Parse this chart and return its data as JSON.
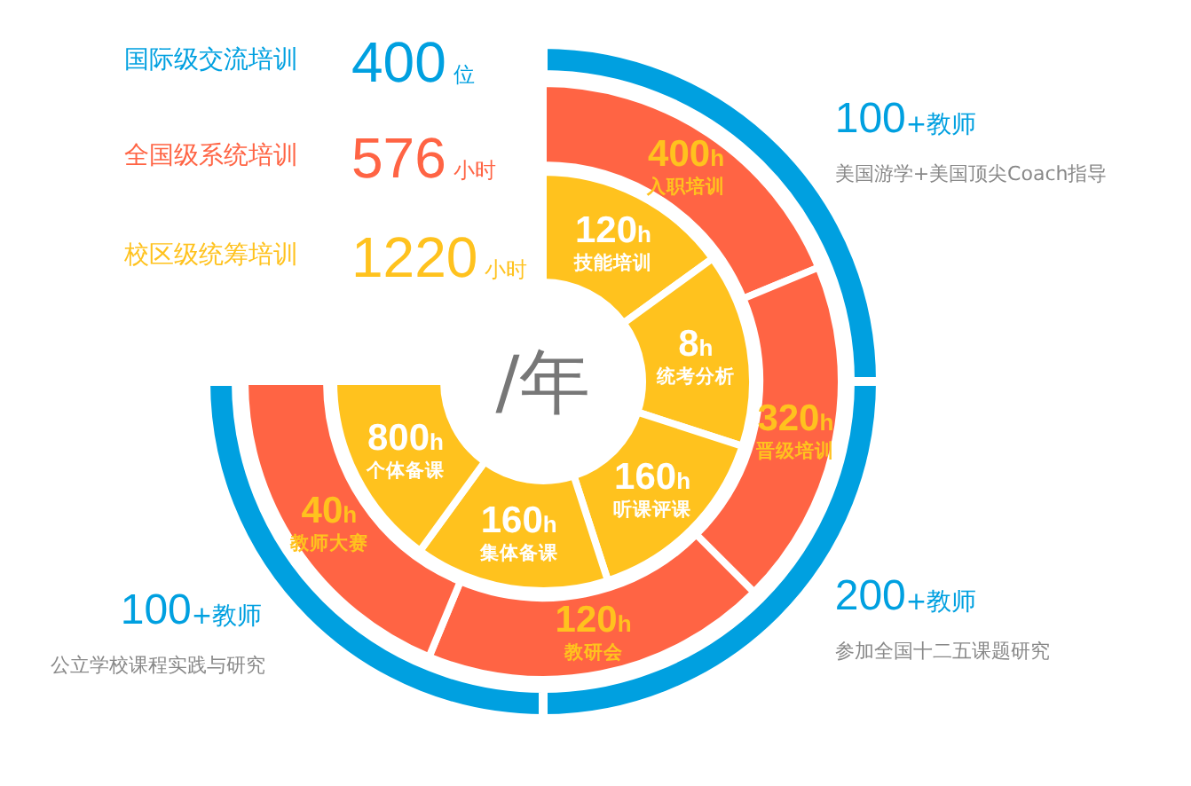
{
  "chart_data": [
    {
      "type": "other",
      "title": "国际级交流培训",
      "totals": [
        "400位"
      ],
      "categories": [
        "美国游学+美国顶尖Coach指导",
        "参加全国十二五课题研究",
        "公立学校课程实践与研究"
      ],
      "values": [
        100,
        200,
        100
      ],
      "value_labels": [
        "100+教师",
        "200+教师",
        "100+教师"
      ],
      "colors": [
        "#00a0e0",
        "#00a0e0",
        "#00a0e0"
      ]
    },
    {
      "type": "other",
      "title": "全国级系统培训",
      "totals": [
        "576小时"
      ],
      "categories": [
        "入职培训",
        "晋级培训",
        "教研会",
        "教师大赛"
      ],
      "values": [
        400,
        320,
        120,
        40
      ],
      "value_labels": [
        "400h",
        "320h",
        "120h",
        "40h"
      ],
      "colors": [
        "#ff6444",
        "#ff6444",
        "#ff6444",
        "#ff6444"
      ]
    },
    {
      "type": "other",
      "title": "校区级统筹培训",
      "totals": [
        "1220小时"
      ],
      "annotations": [
        "/年"
      ],
      "categories": [
        "技能培训",
        "统考分析",
        "听课评课",
        "集体备课",
        "个体备课"
      ],
      "values": [
        120,
        8,
        160,
        160,
        800
      ],
      "value_labels": [
        "120h",
        "8h",
        "160h",
        "160h",
        "800h"
      ],
      "colors": [
        "#ffc21e",
        "#ffc21e",
        "#ffc21e",
        "#ffc21e",
        "#ffc21e"
      ]
    }
  ]
}
